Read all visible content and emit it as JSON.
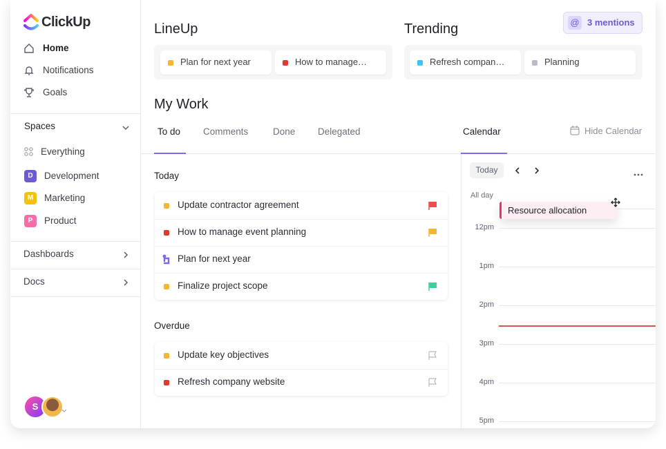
{
  "brand": "ClickUp",
  "nav": [
    "Home",
    "Notifications",
    "Goals"
  ],
  "spaces": {
    "title": "Spaces",
    "items": [
      {
        "label": "Everything"
      },
      {
        "badge": "D",
        "label": "Development",
        "color": "#6b5bd6"
      },
      {
        "badge": "M",
        "label": "Marketing",
        "color": "#f5c20b"
      },
      {
        "badge": "P",
        "label": "Product",
        "color": "#f46ea8"
      }
    ]
  },
  "sections": [
    "Dashboards",
    "Docs"
  ],
  "avatar": "S",
  "lineup": {
    "title": "LineUp",
    "items": [
      {
        "label": "Plan for next year",
        "color": "#f5b731"
      },
      {
        "label": "How to manage…",
        "color": "#e03a2e"
      }
    ]
  },
  "trending": {
    "title": "Trending",
    "items": [
      {
        "label": "Refresh compan…",
        "color": "#3ec3f5"
      },
      {
        "label": "Planning",
        "color": "#b9bcc6"
      }
    ]
  },
  "mentions": {
    "icon": "@",
    "label": "3 mentions"
  },
  "my_work": {
    "title": "My Work",
    "tabs": [
      "To do",
      "Comments",
      "Done",
      "Delegated"
    ],
    "groups": [
      {
        "title": "Today",
        "tasks": [
          {
            "label": "Update contractor agreement",
            "color": "#f5b731",
            "flag": "#f04e4e"
          },
          {
            "label": "How to manage event planning",
            "color": "#e03a2e",
            "flag": "#f5b731"
          },
          {
            "label": "Plan for next year",
            "color": "#7b68ee"
          },
          {
            "label": "Finalize project scope",
            "color": "#f5b731",
            "flag": "#3dd0a0"
          }
        ]
      },
      {
        "title": "Overdue",
        "tasks": [
          {
            "label": "Update key objectives",
            "color": "#f5b731",
            "flag": "outline"
          },
          {
            "label": "Refresh company website",
            "color": "#e03a2e",
            "flag": "outline"
          }
        ]
      }
    ]
  },
  "calendar": {
    "tab": "Calendar",
    "hide": "Hide Calendar",
    "today": "Today",
    "all_day": "All day",
    "event": "Resource allocation",
    "hours": [
      "12pm",
      "1pm",
      "2pm",
      "3pm",
      "4pm",
      "5pm"
    ]
  }
}
